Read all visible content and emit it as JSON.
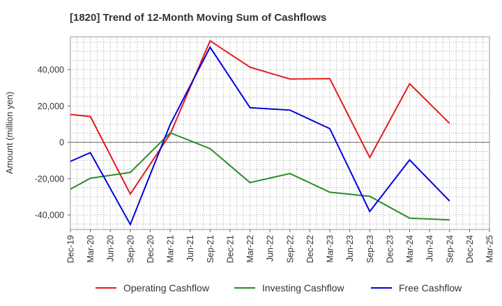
{
  "chart_data": {
    "type": "line",
    "title": "[1820]  Trend of 12-Month Moving Sum of Cashflows",
    "ylabel": "Amount (million yen)",
    "xlabel": "",
    "categories": [
      "Dec-19",
      "Mar-20",
      "Jun-20",
      "Sep-20",
      "Dec-20",
      "Mar-21",
      "Jun-21",
      "Sep-21",
      "Dec-21",
      "Mar-22",
      "Jun-22",
      "Sep-22",
      "Dec-22",
      "Mar-23",
      "Jun-23",
      "Sep-23",
      "Dec-23",
      "Mar-24",
      "Jun-24",
      "Sep-24",
      "Dec-24",
      "Mar-25"
    ],
    "ylim": [
      -48000,
      58000
    ],
    "yticks": [
      -40000,
      -20000,
      0,
      20000,
      40000
    ],
    "ytick_labels": [
      "-40,000",
      "-20,000",
      "0",
      "20,000",
      "40,000"
    ],
    "grid": true,
    "legend_position": "bottom",
    "series": [
      {
        "name": "Operating Cashflow",
        "color": "#e41a1c",
        "values": [
          15300,
          14200,
          null,
          -28500,
          null,
          4500,
          null,
          55800,
          null,
          41300,
          null,
          34800,
          null,
          35000,
          null,
          -8400,
          null,
          32200,
          null,
          10400,
          null,
          null
        ]
      },
      {
        "name": "Investing Cashflow",
        "color": "#2a8a2a",
        "values": [
          -25800,
          -19800,
          null,
          -16600,
          null,
          5200,
          null,
          -3500,
          null,
          -22200,
          null,
          -17200,
          null,
          -27500,
          null,
          -29700,
          null,
          -41800,
          null,
          -42700,
          null,
          null
        ]
      },
      {
        "name": "Free Cashflow",
        "color": "#0000dd",
        "values": [
          -10500,
          -5700,
          null,
          -45200,
          null,
          9800,
          null,
          52300,
          null,
          19000,
          null,
          17700,
          null,
          7500,
          null,
          -38100,
          null,
          -9700,
          null,
          -32300,
          null,
          null
        ]
      }
    ]
  }
}
